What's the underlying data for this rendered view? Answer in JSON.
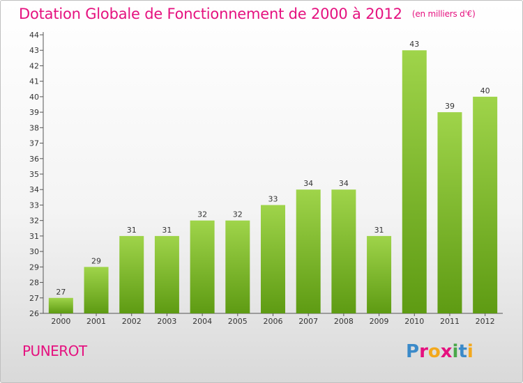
{
  "header": {
    "title": "Dotation Globale de Fonctionnement de 2000 à 2012",
    "subtitle": "(en milliers d'€)"
  },
  "footer": {
    "commune": "PUNEROT",
    "logo": "Proxiti"
  },
  "colors": {
    "title": "#e5117f",
    "bar_top": "#9fd44a",
    "bar_bottom": "#5e9b13",
    "logo_letters": [
      "#3b8ac9",
      "#e5117f",
      "#f3a81c",
      "#e5117f",
      "#4aa84a",
      "#3b8ac9",
      "#f3a81c"
    ]
  },
  "chart_data": {
    "type": "bar",
    "categories": [
      "2000",
      "2001",
      "2002",
      "2003",
      "2004",
      "2005",
      "2006",
      "2007",
      "2008",
      "2009",
      "2010",
      "2011",
      "2012"
    ],
    "values": [
      27,
      29,
      31,
      31,
      32,
      32,
      33,
      34,
      34,
      31,
      43,
      39,
      40
    ],
    "data_labels": [
      "27",
      "29",
      "31",
      "31",
      "32",
      "32",
      "33",
      "34",
      "34",
      "31",
      "43",
      "39",
      "40"
    ],
    "ylim": [
      26,
      44
    ],
    "yticks": [
      "26",
      "27",
      "28",
      "29",
      "30",
      "31",
      "32",
      "33",
      "34",
      "35",
      "36",
      "37",
      "38",
      "39",
      "40",
      "41",
      "42",
      "43",
      "44"
    ],
    "grid": false,
    "legend": "none"
  }
}
